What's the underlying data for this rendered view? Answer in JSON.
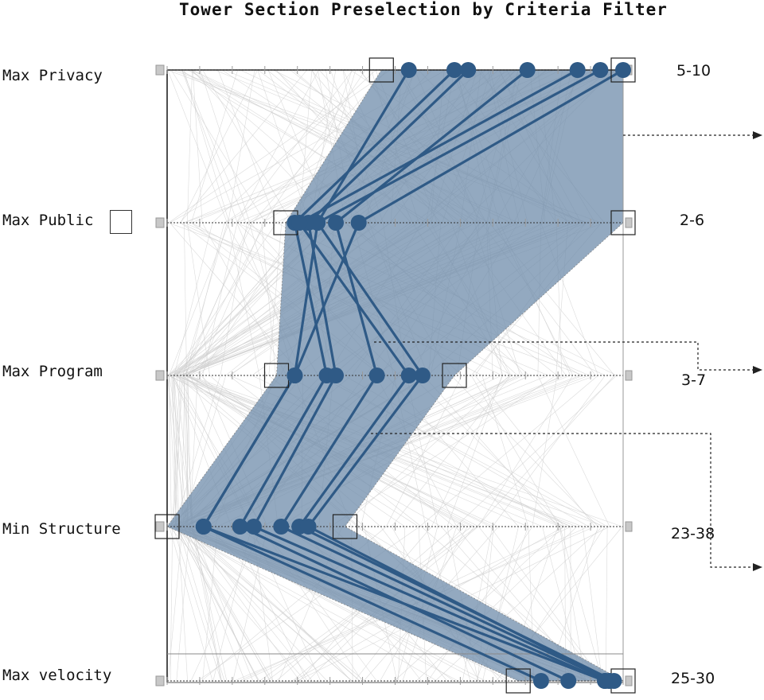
{
  "title": "Tower Section Preselection by Criteria Filter",
  "criteria": [
    {
      "label": "Max Privacy",
      "range": "5-10"
    },
    {
      "label": "Max Public",
      "range": "2-6"
    },
    {
      "label": "Max Program",
      "range": "3-7"
    },
    {
      "label": "Min Structure",
      "range": "23-38"
    },
    {
      "label": "Max velocity",
      "range": "25-30"
    }
  ],
  "chart_data": {
    "type": "parallel-coordinates",
    "title": "Tower Section Preselection by Criteria Filter",
    "axes": [
      "Max Privacy",
      "Max Public",
      "Max Program",
      "Min Structure",
      "Max velocity"
    ],
    "axis_scale": [
      0,
      100
    ],
    "filter_ranges": [
      {
        "axis": "Max Privacy",
        "min": 47,
        "max": 100
      },
      {
        "axis": "Max Public",
        "min": 26,
        "max": 100
      },
      {
        "axis": "Max Program",
        "min": 24,
        "max": 63
      },
      {
        "axis": "Min Structure",
        "min": 0,
        "max": 39
      },
      {
        "axis": "Max velocity",
        "min": 77,
        "max": 100
      }
    ],
    "selected_lines": [
      [
        53,
        33,
        28,
        8,
        82
      ],
      [
        63,
        28,
        35,
        16,
        88
      ],
      [
        66,
        31,
        37,
        19,
        96
      ],
      [
        79,
        37,
        46,
        25,
        97
      ],
      [
        90,
        29,
        53,
        29,
        98
      ],
      [
        95,
        33,
        56,
        31,
        97
      ],
      [
        100,
        42,
        28,
        8,
        96
      ]
    ],
    "background_line_count": 120
  }
}
